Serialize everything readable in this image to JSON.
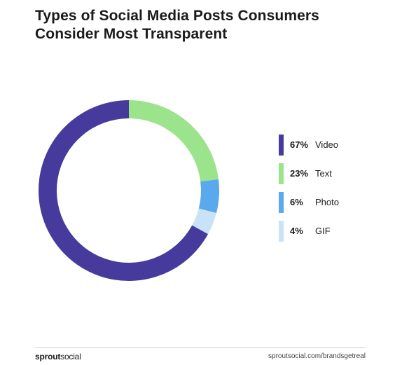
{
  "header": {
    "title": "Types of Social Media Posts Consumers Consider Most Transparent"
  },
  "chart_data": {
    "type": "pie",
    "variant": "donut",
    "title": "Types of Social Media Posts Consumers Consider Most Transparent",
    "series": [
      {
        "label": "Video",
        "value": 67,
        "display": "67%",
        "color": "#463b9c"
      },
      {
        "label": "Text",
        "value": 23,
        "display": "23%",
        "color": "#9be48b"
      },
      {
        "label": "Photo",
        "value": 6,
        "display": "6%",
        "color": "#5aa9ef"
      },
      {
        "label": "GIF",
        "value": 4,
        "display": "4%",
        "color": "#c8e3f8"
      }
    ],
    "legend": {
      "placement": "right"
    }
  },
  "footer": {
    "brand_strong": "sprout",
    "brand_light": "social",
    "url": "sproutsocial.com/brandsgetreal"
  }
}
